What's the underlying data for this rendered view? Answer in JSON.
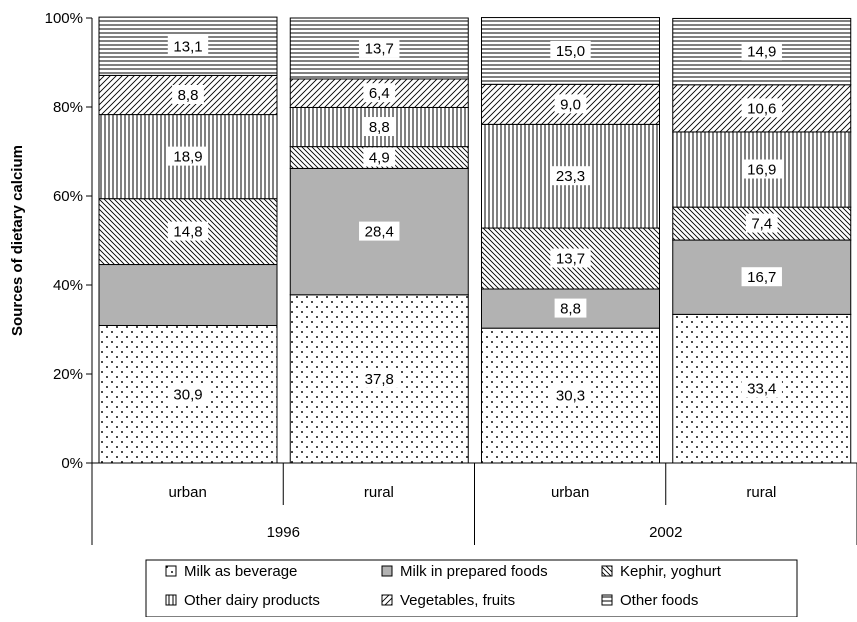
{
  "chart_data": {
    "type": "bar",
    "stacked": true,
    "percent": true,
    "ylabel": "Sources of dietary calcium",
    "ylim": [
      0,
      100
    ],
    "yticks": [
      "0%",
      "20%",
      "40%",
      "60%",
      "80%",
      "100%"
    ],
    "categories": [
      "urban",
      "rural",
      "urban",
      "rural"
    ],
    "groups": [
      {
        "label": "1996",
        "categories": [
          "urban",
          "rural"
        ]
      },
      {
        "label": "2002",
        "categories": [
          "urban",
          "rural"
        ]
      }
    ],
    "series": [
      {
        "name": "Milk as beverage",
        "pattern": "dots",
        "values": [
          30.9,
          37.8,
          30.3,
          33.4
        ],
        "labels": [
          "30,9",
          "37,8",
          "30,3",
          "33,4"
        ]
      },
      {
        "name": "Milk in prepared foods",
        "pattern": "solid-gray",
        "values": [
          13.7,
          28.4,
          8.8,
          16.7
        ],
        "labels": [
          "",
          "28,4",
          "8,8",
          "16,7"
        ]
      },
      {
        "name": "Kephir, yoghurt",
        "pattern": "diagonal-back",
        "values": [
          14.8,
          4.9,
          13.7,
          7.4
        ],
        "labels": [
          "14,8",
          "4,9",
          "13,7",
          "7,4"
        ]
      },
      {
        "name": "Other dairy products",
        "pattern": "vertical",
        "values": [
          18.9,
          8.8,
          23.3,
          16.9
        ],
        "labels": [
          "18,9",
          "8,8",
          "23,3",
          "16,9"
        ]
      },
      {
        "name": "Vegetables, fruits",
        "pattern": "diagonal-forward",
        "values": [
          8.8,
          6.4,
          9.0,
          10.6
        ],
        "labels": [
          "8,8",
          "6,4",
          "9,0",
          "10,6"
        ]
      },
      {
        "name": "Other foods",
        "pattern": "horizontal",
        "values": [
          13.1,
          13.7,
          15.0,
          14.9
        ],
        "labels": [
          "13,1",
          "13,7",
          "15,0",
          "14,9"
        ]
      }
    ],
    "legend_position": "bottom",
    "grid": false,
    "colors": {
      "stroke": "#000000",
      "gray": "#b2b2b2",
      "background": "#ffffff"
    }
  }
}
